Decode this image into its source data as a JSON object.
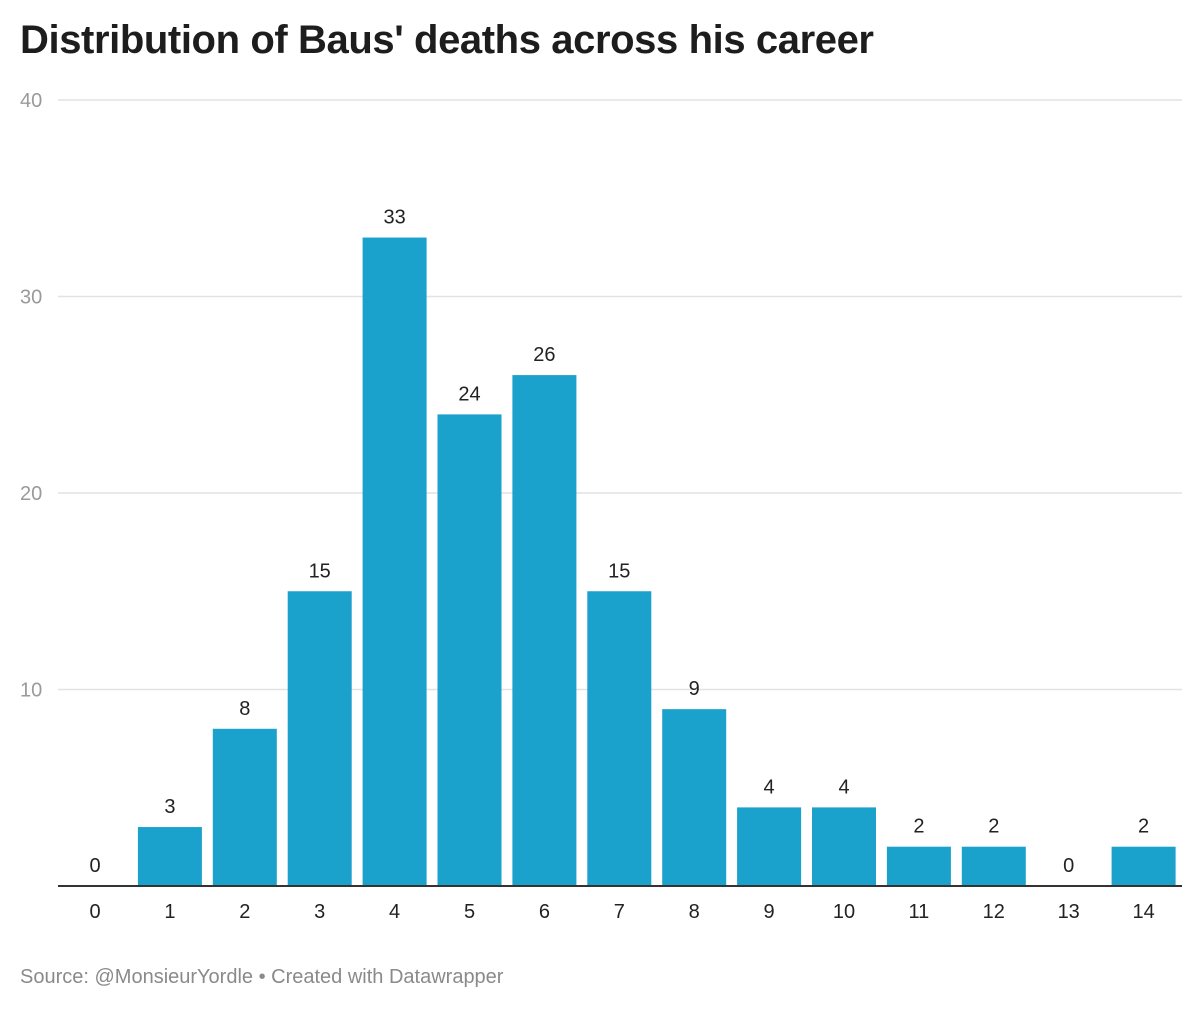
{
  "chart_data": {
    "type": "bar",
    "title": "Distribution of Baus' deaths across his career",
    "categories": [
      "0",
      "1",
      "2",
      "3",
      "4",
      "5",
      "6",
      "7",
      "8",
      "9",
      "10",
      "11",
      "12",
      "13",
      "14"
    ],
    "values": [
      0,
      3,
      8,
      15,
      33,
      24,
      26,
      15,
      9,
      4,
      4,
      2,
      2,
      0,
      2
    ],
    "ylim": [
      0,
      40
    ],
    "yticks": [
      "0",
      "10",
      "20",
      "30",
      "40"
    ],
    "xlabel": "",
    "ylabel": "",
    "grid": true,
    "bar_color": "#1aa1cc",
    "footer": "Source: @MonsieurYordle • Created with Datawrapper"
  }
}
